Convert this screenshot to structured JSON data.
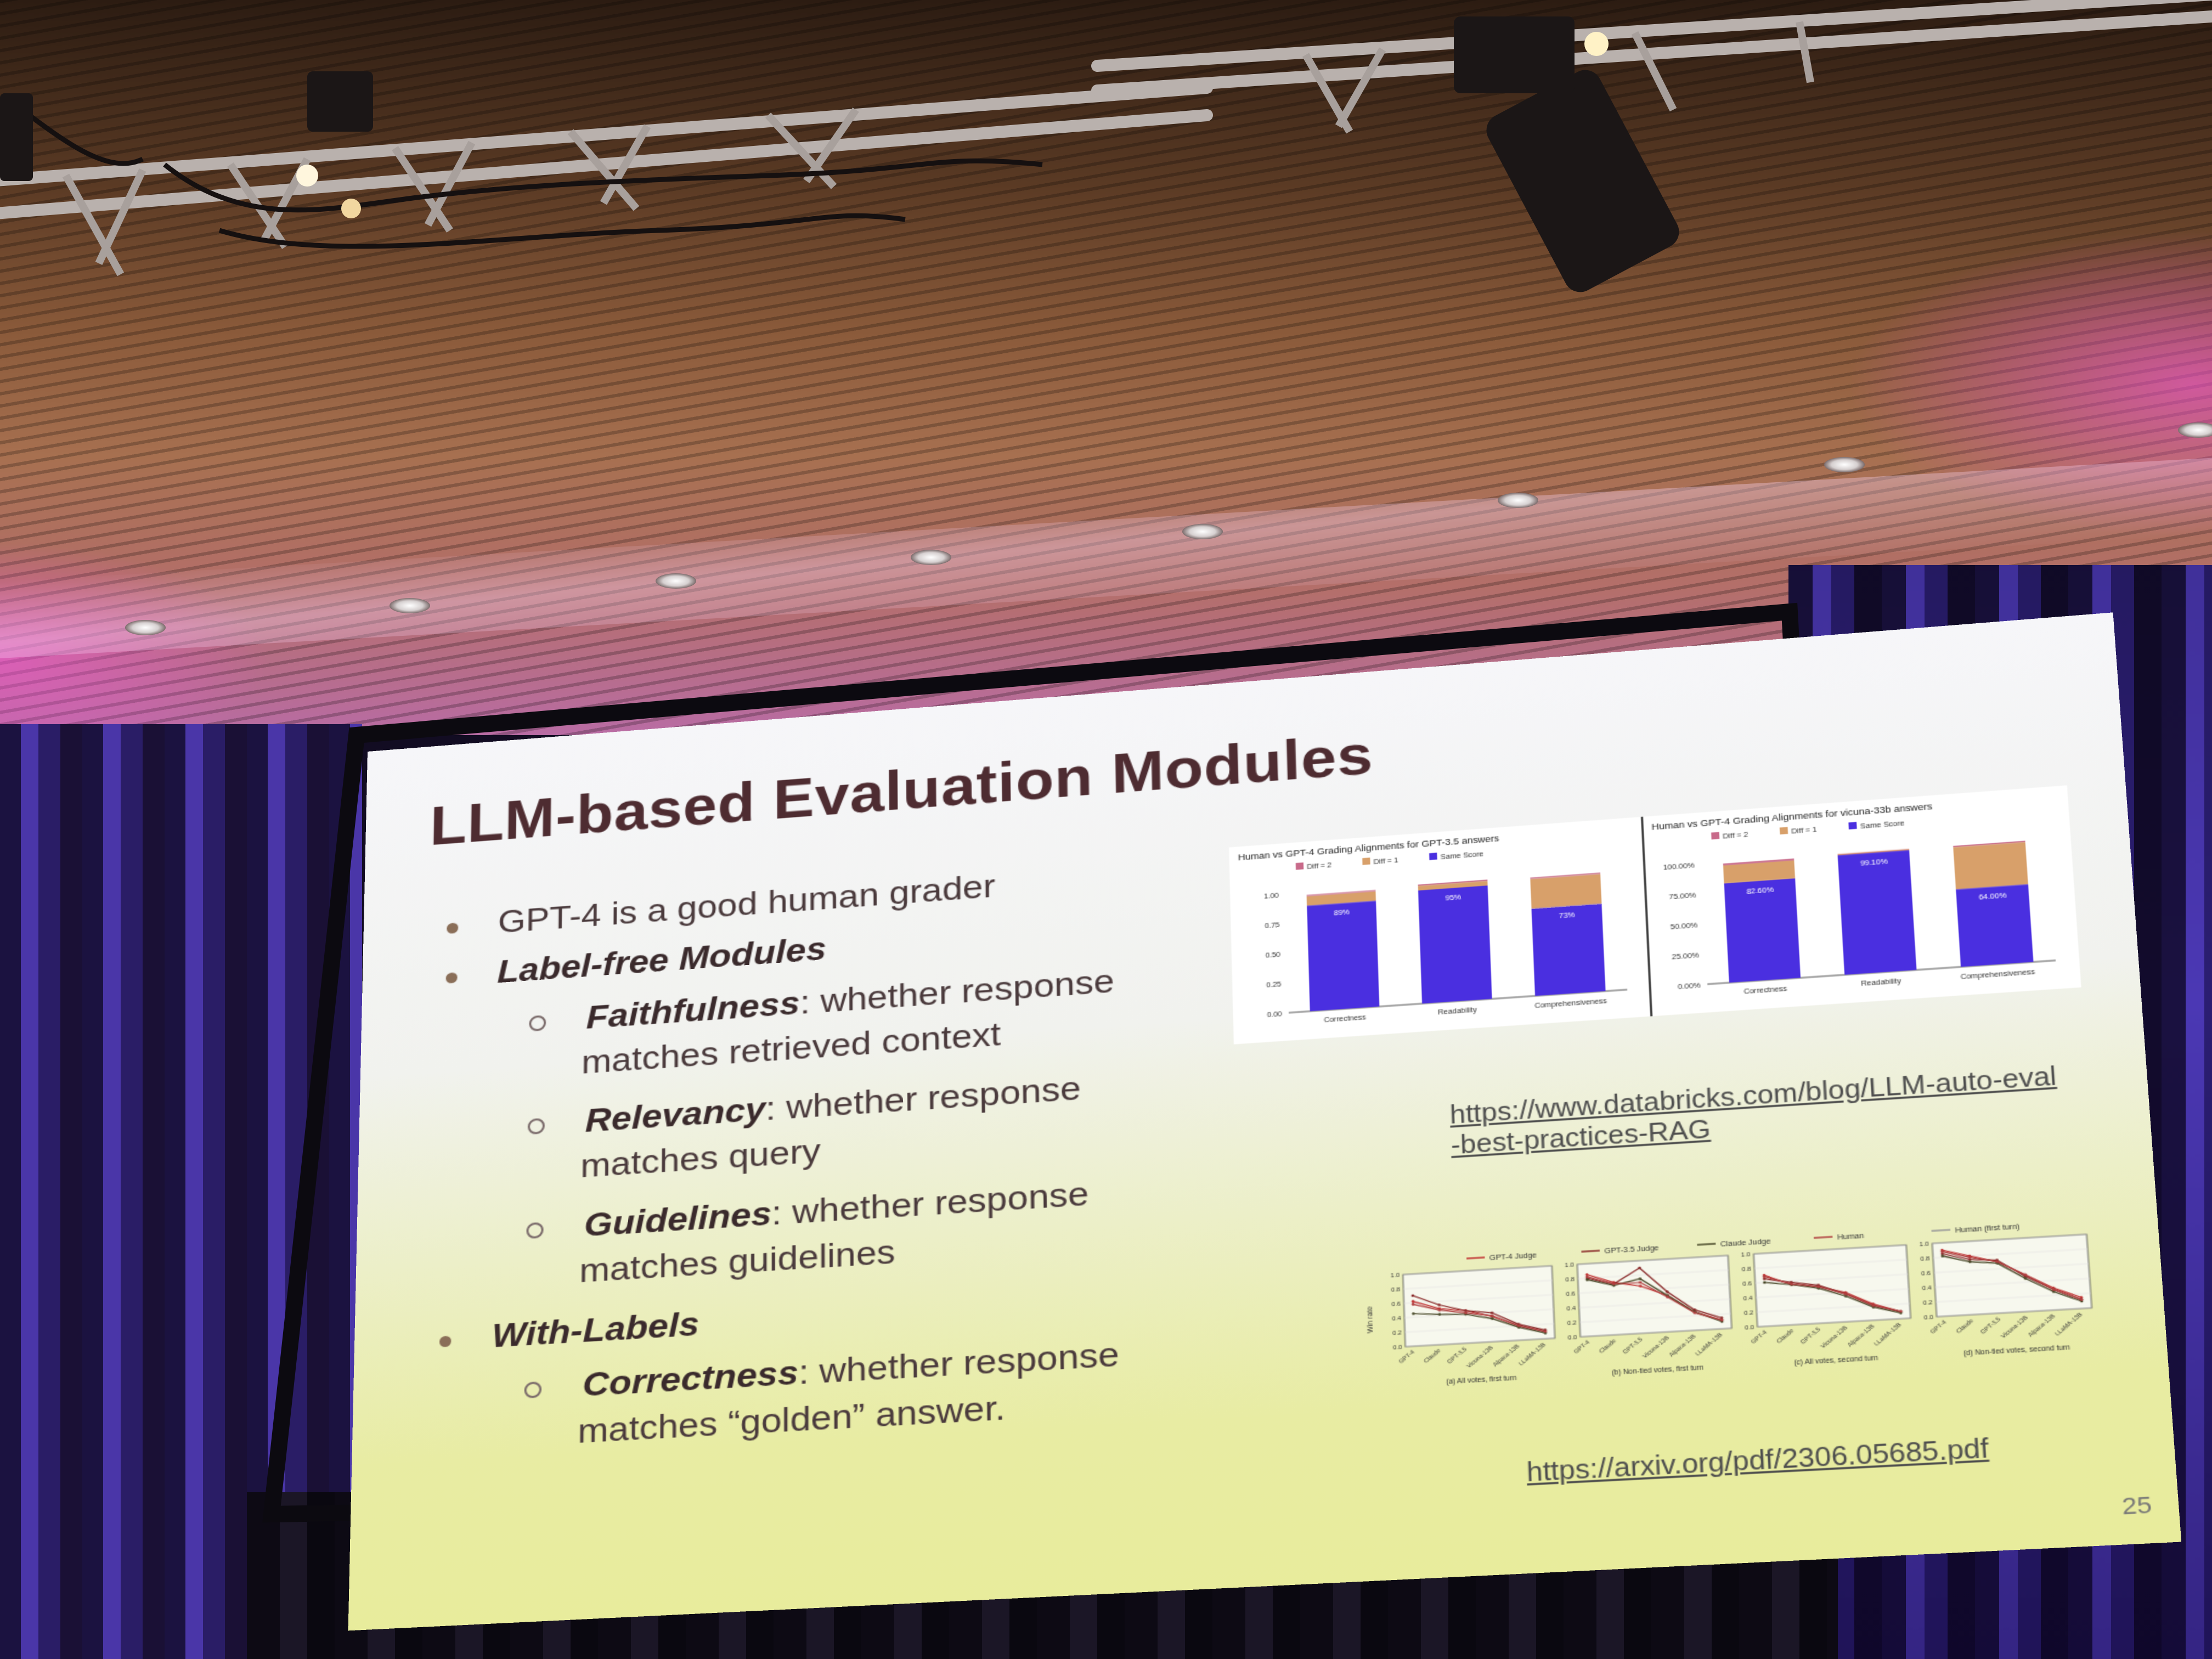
{
  "slide": {
    "title": "LLM-based Evaluation Modules",
    "bullet1": "GPT-4 is a good human grader",
    "bullet2": "Label-free Modules",
    "faith_term": "Faithfulness",
    "faith_text": ": whether response",
    "faith_cont": "matches retrieved context",
    "relev_term": "Relevancy",
    "relev_text": ": whether response",
    "relev_cont": "matches query",
    "guide_term": "Guidelines",
    "guide_text": ": whether response",
    "guide_cont": "matches guidelines",
    "bullet3": "With-Labels",
    "correct_term": "Correctness",
    "correct_text": ": whether response",
    "correct_cont": "matches “golden” answer.",
    "link1_line1": "https://www.databricks.com/blog/LLM-auto-eval",
    "link1_line2": "-best-practices-RAG",
    "link2": "https://arxiv.org/pdf/2306.05685.pdf",
    "page_number": "25"
  },
  "colors": {
    "title": "#4e2c31",
    "bar_same": "#4a2fe0",
    "bar_diff1": "#d8a06a",
    "bar_diff2": "#c86a8a"
  },
  "chart_data": [
    {
      "type": "bar",
      "title": "Human vs GPT-4 Grading Alignments for GPT-3.5 answers",
      "legend": [
        "Diff = 2",
        "Diff = 1",
        "Same Score"
      ],
      "categories": [
        "Correctness",
        "Readability",
        "Comprehensiveness"
      ],
      "series": [
        {
          "name": "Same Score",
          "values": [
            0.89,
            0.95,
            0.73
          ]
        },
        {
          "name": "Diff = 1",
          "values": [
            0.08,
            0.04,
            0.25
          ]
        },
        {
          "name": "Diff = 2",
          "values": [
            0.01,
            0.01,
            0.01
          ]
        }
      ],
      "data_labels": [
        "89%",
        "95%",
        "73%"
      ],
      "y_ticks": [
        "0.00",
        "0.25",
        "0.50",
        "0.75",
        "1.00"
      ],
      "ylim": [
        0,
        1
      ]
    },
    {
      "type": "bar",
      "title": "Human vs GPT-4 Grading Alignments for vicuna-33b answers",
      "legend": [
        "Diff = 2",
        "Diff = 1",
        "Same Score"
      ],
      "categories": [
        "Correctness",
        "Readability",
        "Comprehensiveness"
      ],
      "series": [
        {
          "name": "Same Score",
          "values": [
            82.6,
            99.1,
            64.0
          ]
        },
        {
          "name": "Diff = 1",
          "values": [
            15,
            1,
            35
          ]
        },
        {
          "name": "Diff = 2",
          "values": [
            1.5,
            0,
            1
          ]
        }
      ],
      "data_labels": [
        "82.60%",
        "99.10%",
        "64.00%"
      ],
      "y_ticks": [
        "0.00%",
        "25.00%",
        "50.00%",
        "75.00%",
        "100.00%"
      ],
      "ylim": [
        0,
        100
      ]
    },
    {
      "type": "line",
      "legend": [
        "GPT-4 Judge",
        "GPT-3.5 Judge",
        "Claude Judge",
        "Human",
        "Human (first turn)"
      ],
      "ylabel": "Win rate",
      "subplot_captions": [
        "(a) All votes, first turn",
        "(b) Non-tied votes, first turn",
        "(c) All votes, second turn",
        "(d) Non-tied votes, second turn"
      ],
      "categories": [
        "GPT-4",
        "Claude",
        "GPT-3.5",
        "Vicuna-13B",
        "Alpaca-13B",
        "LLaMA-13B"
      ],
      "y_ticks": [
        "0.0",
        "0.2",
        "0.4",
        "0.6",
        "0.8",
        "1.0"
      ],
      "ylim": [
        0,
        1
      ],
      "subplots": [
        {
          "series": [
            {
              "name": "GPT-4 Judge",
              "values": [
                0.62,
                0.5,
                0.45,
                0.35,
                0.2,
                0.1
              ]
            },
            {
              "name": "GPT-3.5 Judge",
              "values": [
                0.7,
                0.55,
                0.45,
                0.4,
                0.22,
                0.12
              ]
            },
            {
              "name": "Claude Judge",
              "values": [
                0.45,
                0.42,
                0.4,
                0.32,
                0.18,
                0.08
              ]
            },
            {
              "name": "Human",
              "values": [
                0.58,
                0.48,
                0.42,
                0.36,
                0.2,
                0.1
              ]
            }
          ]
        },
        {
          "series": [
            {
              "name": "GPT-4 Judge",
              "values": [
                0.85,
                0.72,
                0.65,
                0.5,
                0.25,
                0.12
              ]
            },
            {
              "name": "GPT-3.5 Judge",
              "values": [
                0.8,
                0.7,
                0.9,
                0.55,
                0.28,
                0.15
              ]
            },
            {
              "name": "Claude Judge",
              "values": [
                0.78,
                0.68,
                0.75,
                0.5,
                0.25,
                0.1
              ]
            },
            {
              "name": "Human",
              "values": [
                0.82,
                0.7,
                0.7,
                0.48,
                0.24,
                0.12
              ]
            }
          ]
        },
        {
          "series": [
            {
              "name": "GPT-4 Judge",
              "values": [
                0.7,
                0.55,
                0.5,
                0.4,
                0.22,
                0.1
              ]
            },
            {
              "name": "GPT-3.5 Judge",
              "values": [
                0.65,
                0.58,
                0.52,
                0.38,
                0.2,
                0.1
              ]
            },
            {
              "name": "Claude Judge",
              "values": [
                0.6,
                0.55,
                0.48,
                0.35,
                0.18,
                0.08
              ]
            },
            {
              "name": "Human",
              "values": [
                0.68,
                0.56,
                0.5,
                0.38,
                0.2,
                0.1
              ]
            }
          ]
        },
        {
          "series": [
            {
              "name": "GPT-4 Judge",
              "values": [
                0.9,
                0.8,
                0.7,
                0.5,
                0.3,
                0.15
              ]
            },
            {
              "name": "GPT-3.5 Judge",
              "values": [
                0.85,
                0.75,
                0.72,
                0.48,
                0.28,
                0.12
              ]
            },
            {
              "name": "Claude Judge",
              "values": [
                0.82,
                0.72,
                0.68,
                0.45,
                0.25,
                0.1
              ]
            },
            {
              "name": "Human",
              "values": [
                0.88,
                0.78,
                0.7,
                0.5,
                0.28,
                0.12
              ]
            }
          ]
        }
      ]
    }
  ]
}
